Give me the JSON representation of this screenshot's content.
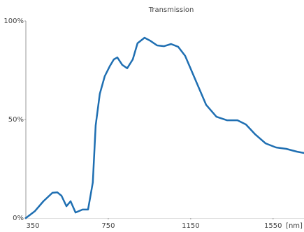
{
  "chart_data": {
    "type": "line",
    "title": "Transmission",
    "x_label": "[nm]",
    "x": [
      350,
      394,
      435,
      479,
      503,
      523,
      547,
      567,
      591,
      625,
      652,
      675,
      689,
      709,
      733,
      757,
      777,
      794,
      818,
      842,
      869,
      892,
      926,
      953,
      987,
      1021,
      1055,
      1089,
      1123,
      1174,
      1225,
      1275,
      1326,
      1377,
      1418,
      1462,
      1513,
      1564,
      1614,
      1665,
      1699
    ],
    "values": [
      0,
      3.5,
      8.5,
      12.8,
      13,
      11.3,
      6,
      8.5,
      2.8,
      4.3,
      4.3,
      18,
      47,
      63,
      72,
      77,
      80.5,
      81.5,
      77.7,
      76,
      80.5,
      88.7,
      91.5,
      90,
      87.6,
      87.2,
      88.3,
      86.9,
      82.3,
      69.9,
      57.4,
      51.4,
      49.6,
      49.6,
      47.5,
      42.6,
      37.9,
      35.8,
      35.1,
      33.7,
      33
    ],
    "color": "#1f6fb2",
    "xlim": [
      350,
      1700
    ],
    "xticks": [
      350,
      750,
      1150,
      1550
    ],
    "ylim": [
      0,
      100
    ],
    "yticks": [
      {
        "value": 0,
        "label": "0%"
      },
      {
        "value": 50,
        "label": "50%"
      },
      {
        "value": 100,
        "label": "100%"
      }
    ]
  }
}
